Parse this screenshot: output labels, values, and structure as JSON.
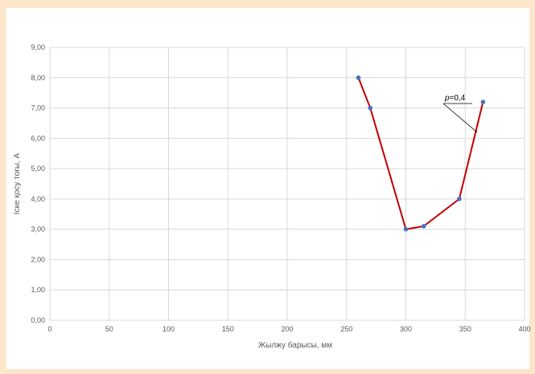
{
  "chart_data": {
    "type": "line",
    "xlabel": "Жылжу барысы, мм",
    "ylabel": "Іске қосу тоғы, А",
    "xlim": [
      0,
      400
    ],
    "ylim": [
      0,
      9
    ],
    "x_ticks": [
      "0",
      "50",
      "100",
      "150",
      "200",
      "250",
      "300",
      "350",
      "400"
    ],
    "y_ticks": [
      "0,00",
      "1,00",
      "2,00",
      "3,00",
      "4,00",
      "5,00",
      "6,00",
      "7,00",
      "8,00",
      "9,00"
    ],
    "grid": true,
    "series": [
      {
        "x": [
          260,
          270,
          300,
          315,
          345,
          365
        ],
        "y": [
          8.0,
          7.0,
          3.0,
          3.1,
          4.0,
          7.2
        ],
        "line_color": "#c00000",
        "marker_color": "#4472c4"
      }
    ],
    "annotation": {
      "prefix": "p",
      "text": "=0,4",
      "points_to": {
        "x": 360,
        "y": 6.2
      }
    }
  }
}
